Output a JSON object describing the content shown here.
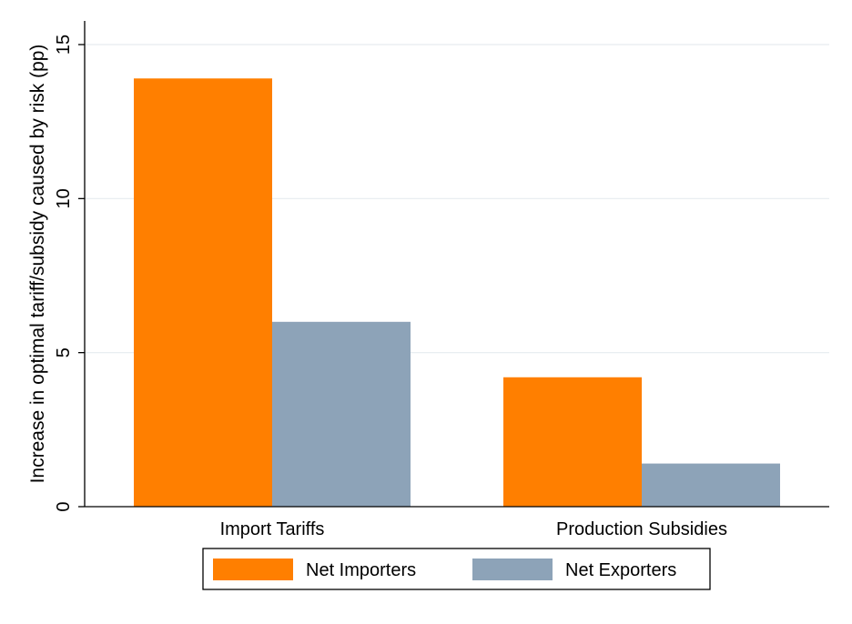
{
  "chart_data": {
    "type": "bar",
    "title": "",
    "xlabel": "",
    "ylabel": "Increase in optimal tariff/subsidy caused by risk (pp)",
    "categories": [
      "Import Tariffs",
      "Production Subsidies"
    ],
    "series": [
      {
        "name": "Net Importers",
        "values": [
          13.9,
          4.2
        ],
        "color": "#ff7f00"
      },
      {
        "name": "Net Exporters",
        "values": [
          6.0,
          1.4
        ],
        "color": "#8da3b8"
      }
    ],
    "ylim": [
      0,
      15
    ],
    "yticks": [
      0,
      5,
      10,
      15
    ],
    "ytick_labels": [
      "0",
      "5",
      "10",
      "15"
    ],
    "grid": true,
    "legend_position": "bottom"
  }
}
